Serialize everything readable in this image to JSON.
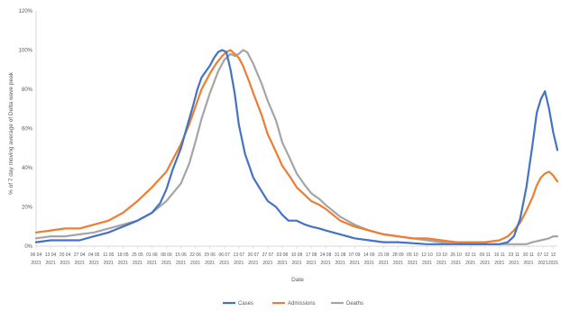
{
  "chart_data": {
    "type": "line",
    "title": "",
    "xlabel": "Date",
    "ylabel": "% of 7 day moving average of Delta wave peak",
    "ylim": [
      0,
      120
    ],
    "y_ticks": [
      "0%",
      "20%",
      "40%",
      "60%",
      "80%",
      "100%",
      "120%"
    ],
    "y_tick_values": [
      0,
      20,
      40,
      60,
      80,
      100,
      120
    ],
    "grid": false,
    "legend_position": "bottom-center",
    "x_tick_labels": [
      [
        "06 04",
        "2021"
      ],
      [
        "13 04",
        "2021"
      ],
      [
        "20 04",
        "2021"
      ],
      [
        "27 04",
        "2021"
      ],
      [
        "04 05",
        "2021"
      ],
      [
        "11 05",
        "2021"
      ],
      [
        "18 05",
        "2021"
      ],
      [
        "25 05",
        "2021"
      ],
      [
        "01 06",
        "2021"
      ],
      [
        "08 06",
        "2021"
      ],
      [
        "15 06",
        "2021"
      ],
      [
        "22 06",
        "2021"
      ],
      [
        "29 06",
        "2021"
      ],
      [
        "06 07",
        "2021"
      ],
      [
        "13 07",
        "2021"
      ],
      [
        "20 07",
        "2021"
      ],
      [
        "27 07",
        "2021"
      ],
      [
        "03 08",
        "2021"
      ],
      [
        "10 08",
        "2021"
      ],
      [
        "17 08",
        "2021"
      ],
      [
        "24 08",
        "2021"
      ],
      [
        "31 08",
        "2021"
      ],
      [
        "07 09",
        "2021"
      ],
      [
        "14 09",
        "2021"
      ],
      [
        "21 09",
        "2021"
      ],
      [
        "28 09",
        "2021"
      ],
      [
        "05 10",
        "2021"
      ],
      [
        "12 10",
        "2021"
      ],
      [
        "19 10",
        "2021"
      ],
      [
        "26 10",
        "2021"
      ],
      [
        "02 11",
        "2021"
      ],
      [
        "09 11",
        "2021"
      ],
      [
        "16 11",
        "2021"
      ],
      [
        "23 11",
        "2021"
      ],
      [
        "30 11",
        "2021"
      ],
      [
        "07 12",
        "2021"
      ],
      [
        "12",
        "2021"
      ]
    ],
    "x_tick_positions": [
      0,
      7,
      14,
      21,
      28,
      35,
      42,
      49,
      56,
      63,
      70,
      77,
      84,
      91,
      98,
      105,
      112,
      119,
      126,
      133,
      140,
      147,
      154,
      161,
      168,
      175,
      182,
      189,
      196,
      203,
      210,
      217,
      224,
      231,
      238,
      245,
      250
    ],
    "x_max": 252,
    "series": [
      {
        "name": "Cases",
        "color": "#4472c4",
        "x": [
          0,
          7,
          14,
          21,
          28,
          35,
          42,
          49,
          56,
          60,
          63,
          66,
          70,
          73,
          76,
          78,
          80,
          82,
          84,
          86,
          88,
          90,
          92,
          94,
          96,
          98,
          101,
          105,
          109,
          112,
          116,
          119,
          122,
          126,
          130,
          133,
          137,
          140,
          147,
          154,
          161,
          168,
          175,
          182,
          189,
          196,
          203,
          210,
          217,
          224,
          228,
          231,
          234,
          237,
          240,
          242,
          244,
          246,
          248,
          250,
          252
        ],
        "values": [
          2,
          3,
          3,
          3,
          5,
          7,
          10,
          13,
          17,
          22,
          29,
          39,
          50,
          61,
          72,
          80,
          86,
          89,
          92,
          96,
          99,
          100,
          99,
          90,
          78,
          62,
          47,
          35,
          28,
          23,
          20,
          16,
          13,
          13,
          11,
          10,
          9,
          8,
          6,
          4,
          3,
          2,
          2,
          1.5,
          1,
          1,
          1,
          1,
          1,
          1,
          2,
          5,
          14,
          30,
          52,
          68,
          75,
          79,
          70,
          58,
          49
        ]
      },
      {
        "name": "Admissions",
        "color": "#ed7d31",
        "x": [
          0,
          7,
          14,
          21,
          28,
          35,
          42,
          49,
          56,
          63,
          70,
          74,
          77,
          80,
          84,
          87,
          90,
          92,
          94,
          96,
          98,
          100,
          103,
          105,
          109,
          112,
          116,
          119,
          123,
          126,
          130,
          133,
          137,
          140,
          147,
          154,
          161,
          168,
          175,
          182,
          189,
          196,
          203,
          210,
          217,
          224,
          228,
          231,
          234,
          237,
          240,
          242,
          244,
          246,
          248,
          250,
          252
        ],
        "values": [
          7,
          8,
          9,
          9,
          11,
          13,
          17,
          23,
          30,
          38,
          52,
          62,
          71,
          80,
          88,
          93,
          97,
          99,
          100,
          98,
          96,
          92,
          84,
          78,
          67,
          57,
          48,
          41,
          35,
          30,
          26,
          23,
          21,
          19,
          13,
          10,
          8,
          6,
          5,
          4,
          4,
          3,
          2,
          2,
          2,
          3,
          5,
          8,
          12,
          18,
          25,
          31,
          35,
          37,
          38,
          36,
          33
        ]
      },
      {
        "name": "Deaths",
        "color": "#a5a5a5",
        "x": [
          0,
          7,
          14,
          21,
          28,
          35,
          42,
          49,
          56,
          63,
          70,
          74,
          77,
          80,
          84,
          88,
          91,
          94,
          96,
          98,
          100,
          102,
          105,
          109,
          112,
          116,
          119,
          123,
          126,
          130,
          133,
          137,
          140,
          147,
          154,
          161,
          168,
          175,
          182,
          189,
          196,
          203,
          210,
          217,
          224,
          228,
          231,
          234,
          237,
          240,
          244,
          248,
          250,
          252
        ],
        "values": [
          4,
          5,
          5,
          6,
          7,
          9,
          11,
          13,
          17,
          23,
          32,
          42,
          53,
          65,
          78,
          89,
          95,
          98,
          97,
          98,
          100,
          99,
          93,
          83,
          74,
          64,
          53,
          44,
          37,
          31,
          27,
          24,
          21,
          15,
          11,
          8,
          6,
          5,
          4,
          3,
          2,
          2,
          1,
          1,
          1,
          1,
          1,
          1,
          1,
          2,
          3,
          4,
          5,
          5
        ]
      }
    ]
  }
}
